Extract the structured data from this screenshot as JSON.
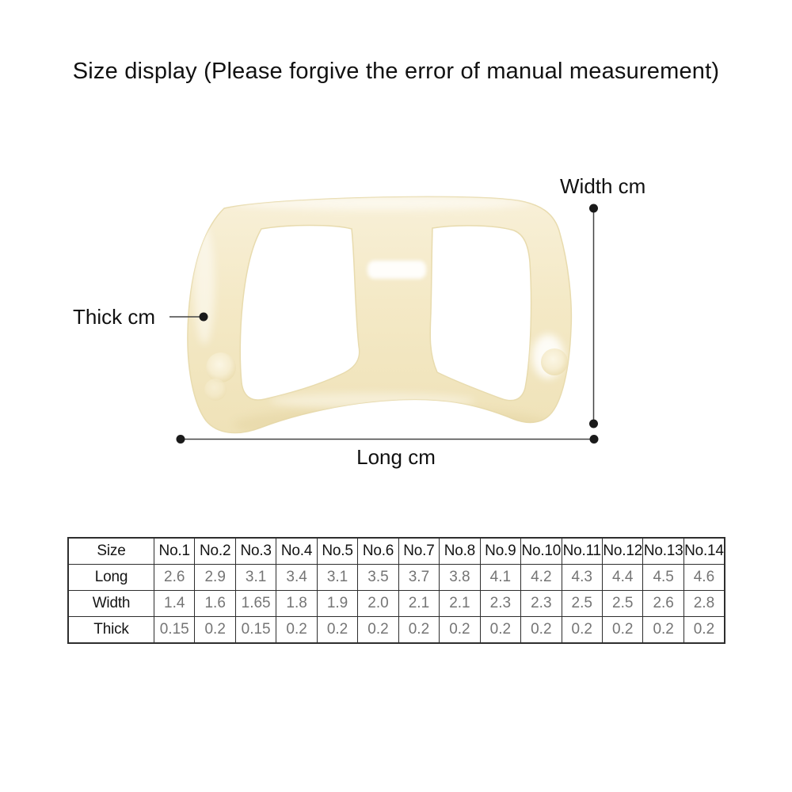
{
  "title": "Size display (Please forgive the error of manual measurement)",
  "diagram": {
    "width_label": "Width cm",
    "thick_label": "Thick cm",
    "long_label": "Long cm"
  },
  "size_table": {
    "header_label": "Size",
    "columns": [
      "No.1",
      "No.2",
      "No.3",
      "No.4",
      "No.5",
      "No.6",
      "No.7",
      "No.8",
      "No.9",
      "No.10",
      "No.11",
      "No.12",
      "No.13",
      "No.14"
    ],
    "rows": [
      {
        "label": "Long",
        "values": [
          "2.6",
          "2.9",
          "3.1",
          "3.4",
          "3.1",
          "3.5",
          "3.7",
          "3.8",
          "4.1",
          "4.2",
          "4.3",
          "4.4",
          "4.5",
          "4.6"
        ]
      },
      {
        "label": "Width",
        "values": [
          "1.4",
          "1.6",
          "1.65",
          "1.8",
          "1.9",
          "2.0",
          "2.1",
          "2.1",
          "2.3",
          "2.3",
          "2.5",
          "2.5",
          "2.6",
          "2.8"
        ]
      },
      {
        "label": "Thick",
        "values": [
          "0.15",
          "0.2",
          "0.15",
          "0.2",
          "0.2",
          "0.2",
          "0.2",
          "0.2",
          "0.2",
          "0.2",
          "0.2",
          "0.2",
          "0.2",
          "0.2"
        ]
      }
    ]
  },
  "colors": {
    "product_cream": "#f4e9c6",
    "product_cream_dark": "#efe2b8",
    "table_border": "#2e2e2e",
    "value_text": "#757575",
    "label_text": "#111111",
    "measure_line": "#444444",
    "measure_dot": "#1a1a1a"
  }
}
